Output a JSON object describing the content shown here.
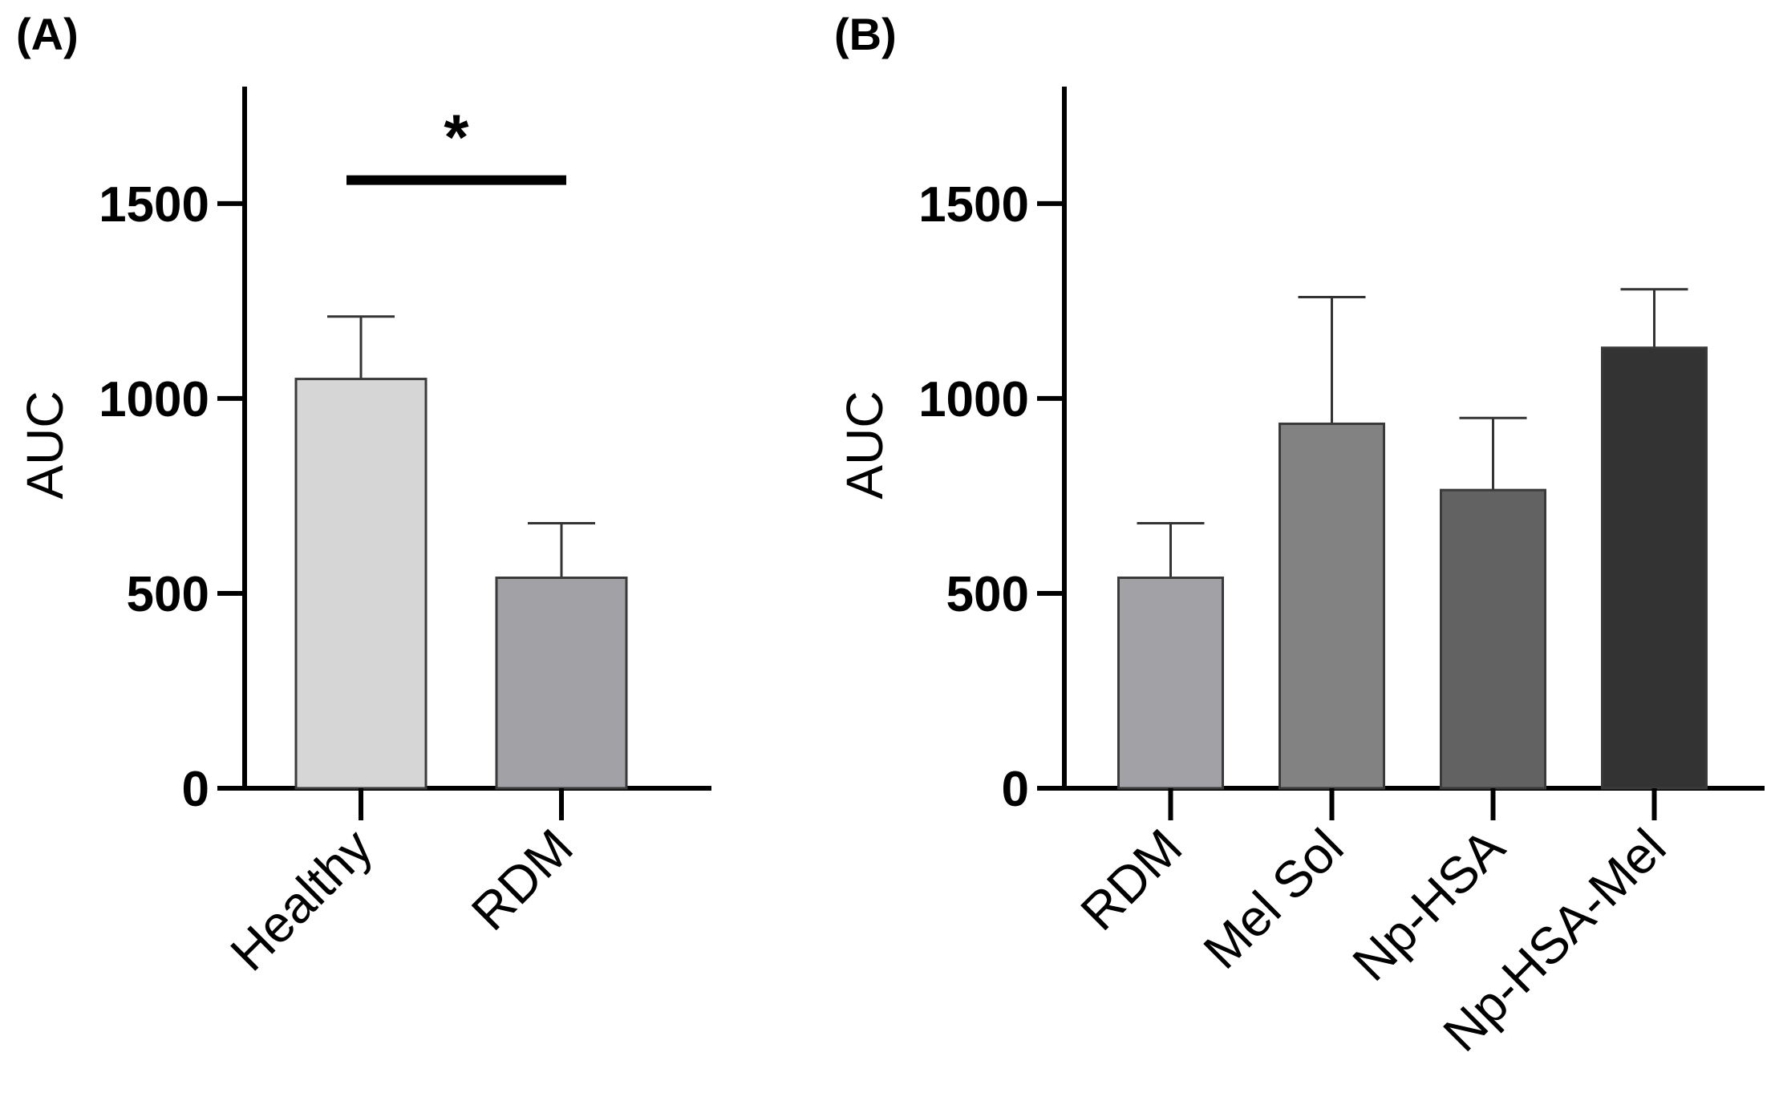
{
  "chart_data": [
    {
      "type": "bar",
      "panel_label": "(A)",
      "ylabel": "AUC",
      "xlabel": "",
      "ylim": [
        0,
        1800
      ],
      "yticks": [
        0,
        500,
        1000,
        1500
      ],
      "categories": [
        "Healthy",
        "RDM"
      ],
      "values": [
        1050,
        540
      ],
      "errors": [
        160,
        140
      ],
      "colors": [
        "#d6d6d6",
        "#a2a2a6"
      ],
      "significance": [
        {
          "from": 0,
          "to": 1,
          "label": "*",
          "y": 1560
        }
      ]
    },
    {
      "type": "bar",
      "panel_label": "(B)",
      "ylabel": "AUC",
      "xlabel": "",
      "ylim": [
        0,
        1800
      ],
      "yticks": [
        0,
        500,
        1000,
        1500
      ],
      "categories": [
        "RDM",
        "Mel Sol",
        "Np-HSA",
        "Np-HSA-Mel"
      ],
      "values": [
        540,
        935,
        765,
        1130
      ],
      "errors": [
        140,
        325,
        185,
        150
      ],
      "colors": [
        "#a2a2a6",
        "#828282",
        "#626262",
        "#333333"
      ],
      "significance": []
    }
  ]
}
